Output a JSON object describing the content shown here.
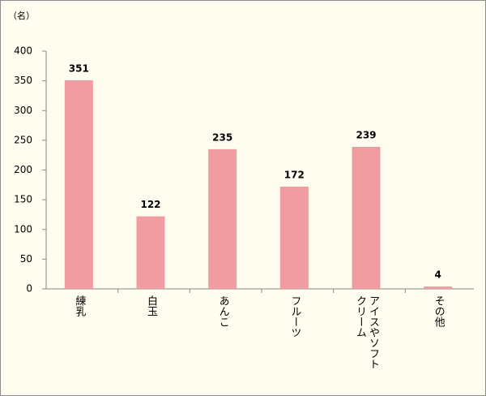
{
  "chart_data": {
    "type": "bar",
    "y_unit": "（名）",
    "categories": [
      "練乳",
      "白玉",
      "あんこ",
      "フルーツ",
      "アイスやソフトクリーム",
      "その他"
    ],
    "values": [
      351,
      122,
      235,
      172,
      239,
      4
    ],
    "color": "#f19ca0",
    "ylim": [
      0,
      400
    ],
    "yticks": [
      0,
      50,
      100,
      150,
      200,
      250,
      300,
      350,
      400
    ],
    "grid": false
  }
}
